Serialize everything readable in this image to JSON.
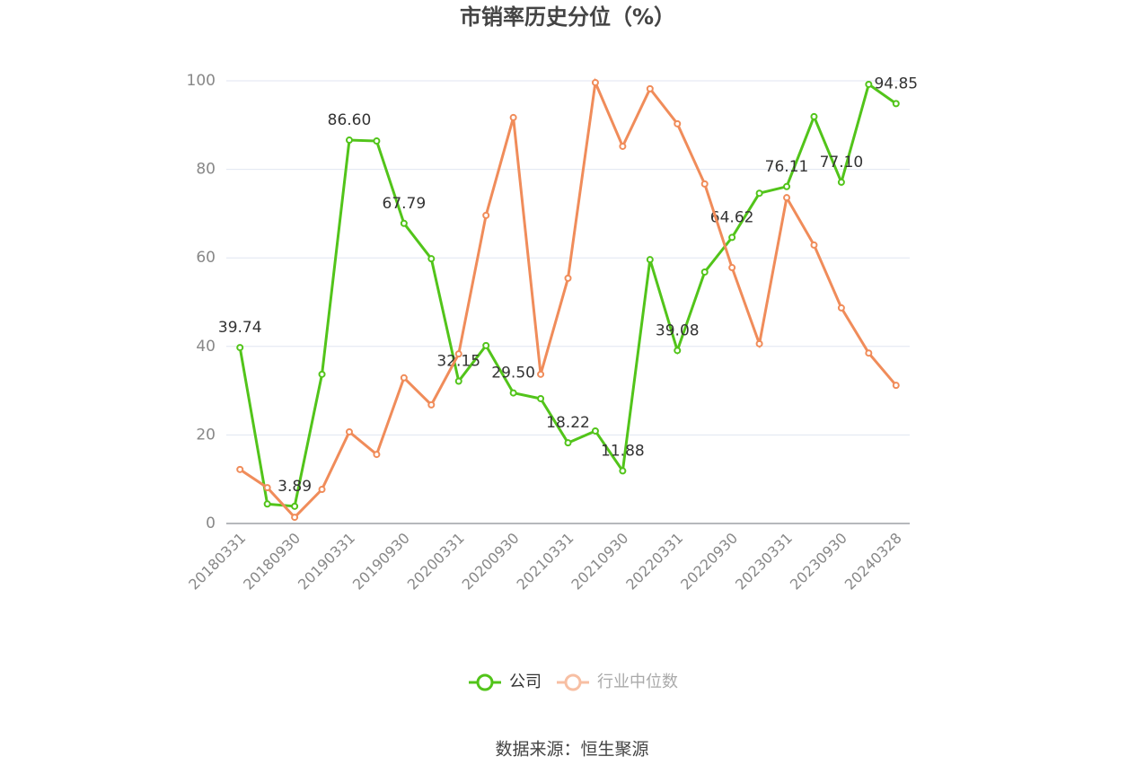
{
  "chart_data": {
    "type": "line",
    "title": "市销率历史分位（%）",
    "source": "数据来源：恒生聚源",
    "categories": [
      "20180331",
      null,
      "20180930",
      null,
      "20190331",
      null,
      "20190930",
      null,
      "20200331",
      null,
      "20200930",
      null,
      "20210331",
      null,
      "20210930",
      null,
      "20220331",
      null,
      "20220930",
      null,
      "20230331",
      null,
      "20230930",
      null,
      "20240328"
    ],
    "series": [
      {
        "name": "公司",
        "color": "#52c41a",
        "values": [
          39.74,
          4.4,
          3.89,
          33.7,
          86.6,
          86.4,
          67.79,
          59.8,
          32.15,
          40.2,
          29.5,
          28.2,
          18.22,
          20.9,
          11.88,
          59.6,
          39.08,
          56.8,
          64.62,
          74.6,
          76.11,
          91.9,
          77.1,
          99.2,
          94.85
        ],
        "value_labels": [
          "39.74",
          null,
          "3.89",
          null,
          "86.60",
          null,
          "67.79",
          null,
          "32.15",
          null,
          "29.50",
          null,
          "18.22",
          null,
          "11.88",
          null,
          "39.08",
          null,
          "64.62",
          null,
          "76.11",
          null,
          "77.10",
          null,
          "94.85"
        ]
      },
      {
        "name": "行业中位数",
        "color": "#f08c5a",
        "values": [
          12.2,
          8.1,
          1.4,
          7.7,
          20.7,
          15.6,
          32.9,
          26.8,
          38.3,
          69.6,
          91.7,
          33.7,
          55.4,
          99.6,
          85.2,
          98.2,
          90.3,
          76.7,
          57.8,
          40.6,
          73.6,
          62.9,
          48.7,
          38.5,
          31.2
        ]
      }
    ],
    "ylim": [
      0,
      100
    ],
    "yticks": [
      0,
      20,
      40,
      60,
      80,
      100
    ],
    "grid": true
  }
}
